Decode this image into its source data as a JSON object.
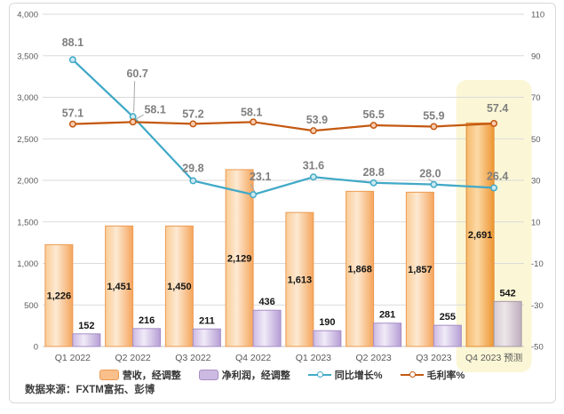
{
  "source_note": "数据来源：FXTM富拓、彭博",
  "chart_data": {
    "type": "combo-bar-line",
    "title": "",
    "categories": [
      "Q1 2022",
      "Q2 2022",
      "Q3 2022",
      "Q4 2022",
      "Q1 2023",
      "Q2 2023",
      "Q3 2023",
      "Q4 2023 预测"
    ],
    "series": [
      {
        "name": "营收，经调整",
        "type": "bar",
        "axis": "left",
        "values": [
          1226,
          1451,
          1450,
          2129,
          1613,
          1868,
          1857,
          2691
        ],
        "labels": [
          "1,226",
          "1,451",
          "1,450",
          "2,129",
          "1,613",
          "1,868",
          "1,857",
          "2,691"
        ],
        "color": "#F5A55C",
        "border": "#EC9B53",
        "forecast_border": "#E08C34",
        "legend_fill": "#FAC08C",
        "label_position": "inside-center"
      },
      {
        "name": "净利润，经调整",
        "type": "bar",
        "axis": "left",
        "values": [
          152,
          216,
          211,
          436,
          190,
          281,
          255,
          542
        ],
        "labels": [
          "152",
          "216",
          "211",
          "436",
          "190",
          "281",
          "255",
          "542"
        ],
        "color": "#B59DD4",
        "border": "#A78EC5",
        "forecast_border": "#A59AA4",
        "legend_fill": "#CDBAE2",
        "label_position": "outside-top"
      },
      {
        "name": "同比增长%",
        "type": "line",
        "axis": "right",
        "values": [
          88.1,
          60.7,
          29.8,
          23.1,
          31.6,
          28.8,
          28.0,
          26.4
        ],
        "labels": [
          "88.1",
          "60.7",
          "29.8",
          "23.1",
          "31.6",
          "28.8",
          "28.0",
          "26.4"
        ],
        "color": "#41A9C7",
        "marker_fill": "#CDE9F1"
      },
      {
        "name": "毛利率%",
        "type": "line",
        "axis": "right",
        "values": [
          57.1,
          58.1,
          57.2,
          58.1,
          53.9,
          56.5,
          55.9,
          57.4
        ],
        "labels": [
          "57.1",
          "58.1",
          "57.2",
          "58.1",
          "53.9",
          "56.5",
          "55.9",
          "57.4"
        ],
        "color": "#C45911",
        "marker_fill": "#F7CDB2"
      }
    ],
    "left_axis": {
      "min": 0,
      "max": 4000,
      "step": 500,
      "ticks": [
        "0",
        "500",
        "1,000",
        "1,500",
        "2,000",
        "2,500",
        "3,000",
        "3,500",
        "4,000"
      ]
    },
    "right_axis": {
      "min": -50,
      "max": 110,
      "step": 20,
      "ticks": [
        "-50",
        "-30",
        "-10",
        "10",
        "30",
        "50",
        "70",
        "90",
        "110"
      ]
    },
    "grid": true,
    "legend_position": "bottom",
    "highlight": {
      "category_index": 7,
      "label": "Q4 2023 预测",
      "fill": "#FBF7D6"
    },
    "forecast_index": 7,
    "grid_color": "#DADADA",
    "baseline_color": "#C6C6C6"
  }
}
